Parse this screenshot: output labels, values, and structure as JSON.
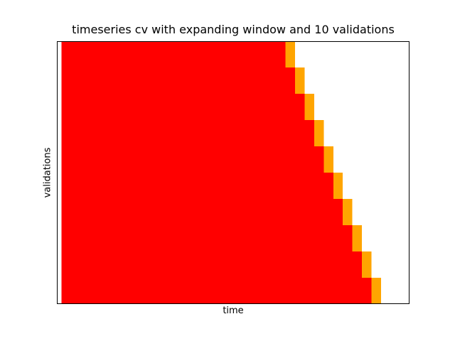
{
  "chart_data": {
    "type": "bar",
    "orientation": "horizontal",
    "stacked": true,
    "title": "timeseries cv with expanding window and 10 validations",
    "xlabel": "time",
    "ylabel": "validations",
    "x_ticks_visible": false,
    "y_ticks_visible": false,
    "grid": false,
    "legend": "none",
    "xlim": [
      -0.5,
      36.5
    ],
    "ylim": [
      10.5,
      0.5
    ],
    "categories": [
      1,
      2,
      3,
      4,
      5,
      6,
      7,
      8,
      9,
      10
    ],
    "series": [
      {
        "role": "train",
        "color": "#ff0000",
        "start": [
          0,
          0,
          0,
          0,
          0,
          0,
          0,
          0,
          0,
          0
        ],
        "length": [
          32.5,
          31.5,
          30.5,
          29.5,
          28.5,
          27.5,
          26.5,
          25.5,
          24.5,
          23.5
        ]
      },
      {
        "role": "validation",
        "color": "#ffa500",
        "start": [
          32.5,
          31.5,
          30.5,
          29.5,
          28.5,
          27.5,
          26.5,
          25.5,
          24.5,
          23.5
        ],
        "length": [
          1,
          1,
          1,
          1,
          1,
          1,
          1,
          1,
          1,
          1
        ]
      }
    ]
  }
}
